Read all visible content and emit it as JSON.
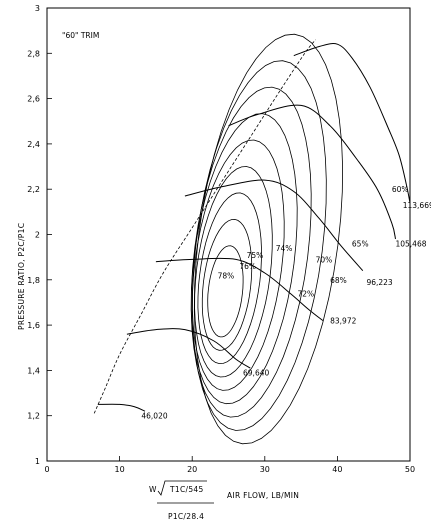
{
  "chart_data": {
    "type": "line",
    "subtype": "compressor map",
    "title": "",
    "trim_label": "\"60\" TRIM",
    "xlabel": "AIR FLOW, LB/MIN",
    "xlabel_formula": {
      "numerator_prefix": "W",
      "numerator_radicand": "T1C/545",
      "denominator": "P1C/28.4"
    },
    "ylabel": "PRESSURE RATIO, P2C/P1C",
    "xlim": [
      0,
      50
    ],
    "ylim": [
      1,
      3
    ],
    "x_ticks": [
      0,
      10,
      20,
      30,
      40,
      50
    ],
    "y_ticks": [
      1,
      1.2,
      1.4,
      1.6,
      1.8,
      2,
      2.2,
      2.4,
      2.6,
      2.8,
      3
    ],
    "y_tick_labels": [
      "1",
      "1,2",
      "1,4",
      "1,6",
      "1,8",
      "2",
      "2,2",
      "2,4",
      "2,6",
      "2,8",
      "3"
    ],
    "grid": false,
    "legend": "none",
    "surge_line": [
      [
        6.5,
        1.21
      ],
      [
        8,
        1.32
      ],
      [
        10,
        1.47
      ],
      [
        13,
        1.65
      ],
      [
        16,
        1.83
      ],
      [
        20,
        2.03
      ],
      [
        24,
        2.23
      ],
      [
        28,
        2.43
      ],
      [
        32,
        2.63
      ],
      [
        35.5,
        2.8
      ],
      [
        37,
        2.86
      ]
    ],
    "speed_lines": [
      {
        "label": "46,020",
        "label_at": [
          13,
          1.2
        ],
        "points": [
          [
            7,
            1.25
          ],
          [
            10,
            1.25
          ],
          [
            12,
            1.24
          ],
          [
            13.5,
            1.22
          ]
        ]
      },
      {
        "label": "69,640",
        "label_at": [
          27,
          1.39
        ],
        "points": [
          [
            11,
            1.56
          ],
          [
            15,
            1.58
          ],
          [
            19,
            1.58
          ],
          [
            23,
            1.53
          ],
          [
            26,
            1.45
          ],
          [
            28,
            1.41
          ]
        ]
      },
      {
        "label": "83,972",
        "label_at": [
          39,
          1.62
        ],
        "points": [
          [
            15,
            1.88
          ],
          [
            20,
            1.89
          ],
          [
            26,
            1.89
          ],
          [
            30,
            1.83
          ],
          [
            33.5,
            1.74
          ],
          [
            36,
            1.67
          ],
          [
            38,
            1.62
          ]
        ]
      },
      {
        "label": "96,223",
        "label_at": [
          44,
          1.79
        ],
        "points": [
          [
            19,
            2.17
          ],
          [
            24,
            2.21
          ],
          [
            30,
            2.24
          ],
          [
            34,
            2.19
          ],
          [
            37.5,
            2.07
          ],
          [
            40.5,
            1.95
          ],
          [
            43.5,
            1.84
          ]
        ]
      },
      {
        "label": "105,468",
        "label_at": [
          48,
          1.96
        ],
        "points": [
          [
            25,
            2.48
          ],
          [
            29,
            2.53
          ],
          [
            35,
            2.57
          ],
          [
            39,
            2.48
          ],
          [
            42.5,
            2.34
          ],
          [
            45.5,
            2.2
          ],
          [
            47.5,
            2.05
          ],
          [
            48,
            1.98
          ]
        ]
      },
      {
        "label": "113,669",
        "label_at": [
          49,
          2.13
        ],
        "points": [
          [
            34,
            2.79
          ],
          [
            37.5,
            2.83
          ],
          [
            40,
            2.84
          ],
          [
            42,
            2.78
          ],
          [
            44.5,
            2.65
          ],
          [
            47,
            2.47
          ],
          [
            48.5,
            2.35
          ],
          [
            49.5,
            2.22
          ],
          [
            50,
            2.14
          ]
        ]
      }
    ],
    "efficiency_islands": [
      {
        "label": "78%",
        "label_at": [
          23.5,
          1.82
        ]
      },
      {
        "label": "76%",
        "label_at": [
          26.5,
          1.86
        ]
      },
      {
        "label": "75%",
        "label_at": [
          27.5,
          1.91
        ]
      },
      {
        "label": "74%",
        "label_at": [
          31.5,
          1.94
        ]
      },
      {
        "label": "72%",
        "label_at": [
          34.5,
          1.74
        ]
      },
      {
        "label": "70%",
        "label_at": [
          37,
          1.89
        ]
      },
      {
        "label": "68%",
        "label_at": [
          39,
          1.8
        ]
      },
      {
        "label": "65%",
        "label_at": [
          42,
          1.96
        ]
      },
      {
        "label": "60%",
        "label_at": [
          47.5,
          2.2
        ]
      }
    ]
  }
}
